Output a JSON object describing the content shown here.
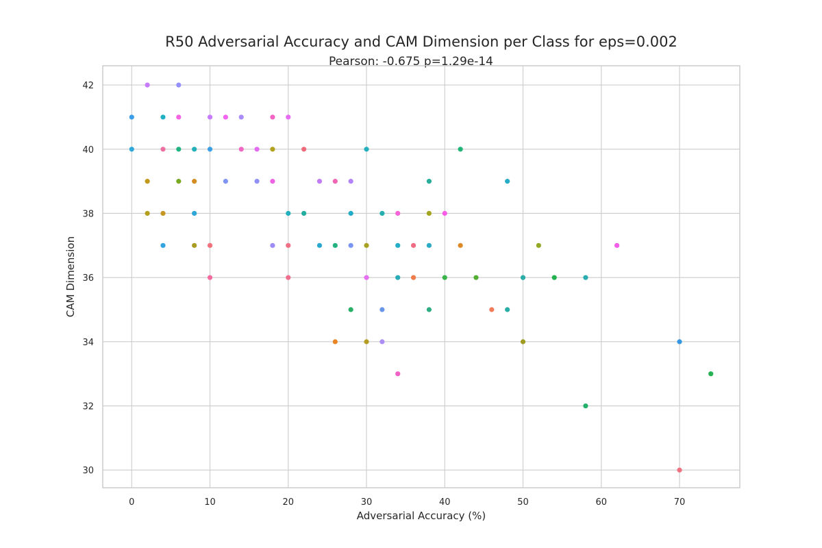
{
  "chart_data": {
    "type": "scatter",
    "title": "R50 Adversarial Accuracy and CAM Dimension per Class for eps=0.002",
    "subtitle": "Pearson: -0.675 p=1.29e-14",
    "xlabel": "Adversarial Accuracy (%)",
    "ylabel": "CAM Dimension",
    "xlim": [
      -3.7,
      77.7
    ],
    "ylim": [
      29.45,
      42.6
    ],
    "xticks": [
      0,
      10,
      20,
      30,
      40,
      50,
      60,
      70
    ],
    "yticks": [
      30,
      32,
      34,
      36,
      38,
      40,
      42
    ],
    "grid": true,
    "legend": "none",
    "points": [
      {
        "x": 2,
        "y": 42,
        "color": "#c77cff"
      },
      {
        "x": 6,
        "y": 42,
        "color": "#9590ff"
      },
      {
        "x": 0,
        "y": 41,
        "color": "#3c9ee8"
      },
      {
        "x": 4,
        "y": 41,
        "color": "#1fb0c4"
      },
      {
        "x": 6,
        "y": 41,
        "color": "#f564e3"
      },
      {
        "x": 10,
        "y": 41,
        "color": "#c77cff"
      },
      {
        "x": 12,
        "y": 41,
        "color": "#f464f0"
      },
      {
        "x": 14,
        "y": 41,
        "color": "#a98bfa"
      },
      {
        "x": 18,
        "y": 41,
        "color": "#f564c5"
      },
      {
        "x": 20,
        "y": 41,
        "color": "#e76bf3"
      },
      {
        "x": 0,
        "y": 40,
        "color": "#2ea8d8"
      },
      {
        "x": 4,
        "y": 40,
        "color": "#ec6fa2"
      },
      {
        "x": 6,
        "y": 40,
        "color": "#20b482"
      },
      {
        "x": 8,
        "y": 40,
        "color": "#23b0b8"
      },
      {
        "x": 10,
        "y": 40,
        "color": "#3a9fe6"
      },
      {
        "x": 14,
        "y": 40,
        "color": "#f267c4"
      },
      {
        "x": 16,
        "y": 40,
        "color": "#e46cf0"
      },
      {
        "x": 18,
        "y": 40,
        "color": "#b0a11e"
      },
      {
        "x": 22,
        "y": 40,
        "color": "#ee6b7c"
      },
      {
        "x": 30,
        "y": 40,
        "color": "#22b0bf"
      },
      {
        "x": 42,
        "y": 40,
        "color": "#1fb577"
      },
      {
        "x": 2,
        "y": 39,
        "color": "#c29a1b"
      },
      {
        "x": 6,
        "y": 39,
        "color": "#7aa924"
      },
      {
        "x": 8,
        "y": 39,
        "color": "#d38e23"
      },
      {
        "x": 12,
        "y": 39,
        "color": "#7f94f3"
      },
      {
        "x": 16,
        "y": 39,
        "color": "#8f8ff5"
      },
      {
        "x": 18,
        "y": 39,
        "color": "#ee63e3"
      },
      {
        "x": 24,
        "y": 39,
        "color": "#c17cf5"
      },
      {
        "x": 26,
        "y": 39,
        "color": "#f064b4"
      },
      {
        "x": 28,
        "y": 39,
        "color": "#b383fa"
      },
      {
        "x": 38,
        "y": 39,
        "color": "#26ae9b"
      },
      {
        "x": 48,
        "y": 39,
        "color": "#27acc7"
      },
      {
        "x": 2,
        "y": 38,
        "color": "#b59f1f"
      },
      {
        "x": 4,
        "y": 38,
        "color": "#c69622"
      },
      {
        "x": 8,
        "y": 38,
        "color": "#2ea6d6"
      },
      {
        "x": 20,
        "y": 38,
        "color": "#23afc0"
      },
      {
        "x": 22,
        "y": 38,
        "color": "#24ad9f"
      },
      {
        "x": 28,
        "y": 38,
        "color": "#22acc8"
      },
      {
        "x": 32,
        "y": 38,
        "color": "#24aeb0"
      },
      {
        "x": 34,
        "y": 38,
        "color": "#f564d9"
      },
      {
        "x": 38,
        "y": 38,
        "color": "#a4a51f"
      },
      {
        "x": 40,
        "y": 38,
        "color": "#f95ce5"
      },
      {
        "x": 4,
        "y": 37,
        "color": "#30a3e0"
      },
      {
        "x": 8,
        "y": 37,
        "color": "#a99c24"
      },
      {
        "x": 10,
        "y": 37,
        "color": "#f0707b"
      },
      {
        "x": 18,
        "y": 37,
        "color": "#9d8cf6"
      },
      {
        "x": 20,
        "y": 37,
        "color": "#f16f86"
      },
      {
        "x": 24,
        "y": 37,
        "color": "#2aa8d2"
      },
      {
        "x": 26,
        "y": 37,
        "color": "#25b081"
      },
      {
        "x": 28,
        "y": 37,
        "color": "#7a95f2"
      },
      {
        "x": 30,
        "y": 37,
        "color": "#a7a224"
      },
      {
        "x": 34,
        "y": 37,
        "color": "#25acc6"
      },
      {
        "x": 36,
        "y": 37,
        "color": "#f06e85"
      },
      {
        "x": 38,
        "y": 37,
        "color": "#2aabc3"
      },
      {
        "x": 42,
        "y": 37,
        "color": "#dc8a28"
      },
      {
        "x": 52,
        "y": 37,
        "color": "#90a823"
      },
      {
        "x": 62,
        "y": 37,
        "color": "#f55ce8"
      },
      {
        "x": 10,
        "y": 36,
        "color": "#f46b9f"
      },
      {
        "x": 20,
        "y": 36,
        "color": "#f06e8d"
      },
      {
        "x": 30,
        "y": 36,
        "color": "#e56ff1"
      },
      {
        "x": 34,
        "y": 36,
        "color": "#2aabb8"
      },
      {
        "x": 36,
        "y": 36,
        "color": "#ef7a4a"
      },
      {
        "x": 40,
        "y": 36,
        "color": "#3ab44a"
      },
      {
        "x": 44,
        "y": 36,
        "color": "#53af32"
      },
      {
        "x": 50,
        "y": 36,
        "color": "#2aada6"
      },
      {
        "x": 54,
        "y": 36,
        "color": "#24b04f"
      },
      {
        "x": 58,
        "y": 36,
        "color": "#2aadb0"
      },
      {
        "x": 28,
        "y": 35,
        "color": "#2bb067"
      },
      {
        "x": 32,
        "y": 35,
        "color": "#6a96e8"
      },
      {
        "x": 38,
        "y": 35,
        "color": "#2fae84"
      },
      {
        "x": 46,
        "y": 35,
        "color": "#f07c5c"
      },
      {
        "x": 48,
        "y": 35,
        "color": "#2aada6"
      },
      {
        "x": 26,
        "y": 34,
        "color": "#e98524"
      },
      {
        "x": 30,
        "y": 34,
        "color": "#b59c22"
      },
      {
        "x": 32,
        "y": 34,
        "color": "#ad8ef5"
      },
      {
        "x": 50,
        "y": 34,
        "color": "#a09c1f"
      },
      {
        "x": 70,
        "y": 34,
        "color": "#3596e2"
      },
      {
        "x": 34,
        "y": 33,
        "color": "#f161c6"
      },
      {
        "x": 74,
        "y": 33,
        "color": "#26b153"
      },
      {
        "x": 58,
        "y": 32,
        "color": "#23b06a"
      },
      {
        "x": 70,
        "y": 30,
        "color": "#f1707f"
      }
    ]
  }
}
